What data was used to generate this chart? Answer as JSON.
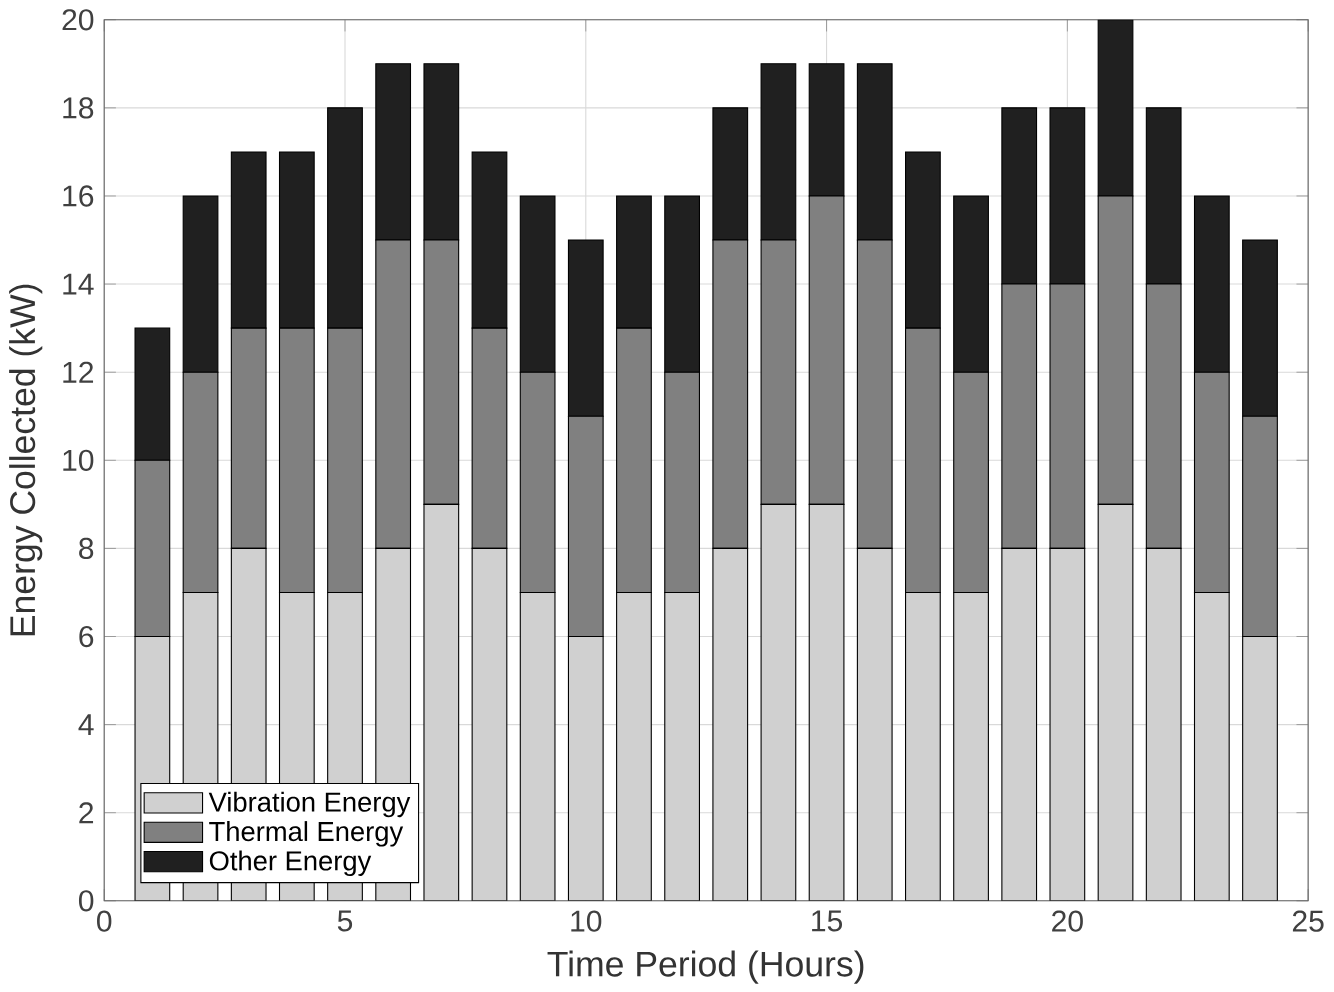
{
  "chart_data": {
    "type": "bar",
    "stacked": true,
    "xlabel": "Time Period (Hours)",
    "ylabel": "Energy Collected (kW)",
    "x": [
      1,
      2,
      3,
      4,
      5,
      6,
      7,
      8,
      9,
      10,
      11,
      12,
      13,
      14,
      15,
      16,
      17,
      18,
      19,
      20,
      21,
      22,
      23,
      24
    ],
    "series": [
      {
        "name": "Vibration Energy",
        "color": "#d0d0d0",
        "values": [
          6,
          7,
          8,
          7,
          7,
          8,
          9,
          8,
          7,
          6,
          7,
          7,
          8,
          9,
          9,
          8,
          7,
          7,
          8,
          8,
          9,
          8,
          7,
          6
        ]
      },
      {
        "name": "Thermal Energy",
        "color": "#808080",
        "values": [
          4,
          5,
          5,
          6,
          6,
          7,
          6,
          5,
          5,
          5,
          6,
          5,
          7,
          6,
          7,
          7,
          6,
          5,
          6,
          6,
          7,
          6,
          5,
          5
        ]
      },
      {
        "name": "Other Energy",
        "color": "#202020",
        "values": [
          3,
          4,
          4,
          4,
          5,
          4,
          4,
          4,
          4,
          4,
          3,
          4,
          3,
          4,
          3,
          4,
          4,
          4,
          4,
          4,
          4,
          4,
          4,
          4
        ]
      }
    ],
    "xlim": [
      0,
      25
    ],
    "xticks": [
      0,
      5,
      10,
      15,
      20,
      25
    ],
    "ylim": [
      0,
      20
    ],
    "yticks": [
      0,
      2,
      4,
      6,
      8,
      10,
      12,
      14,
      16,
      18,
      20
    ],
    "grid": true,
    "legend": "bottom left"
  }
}
